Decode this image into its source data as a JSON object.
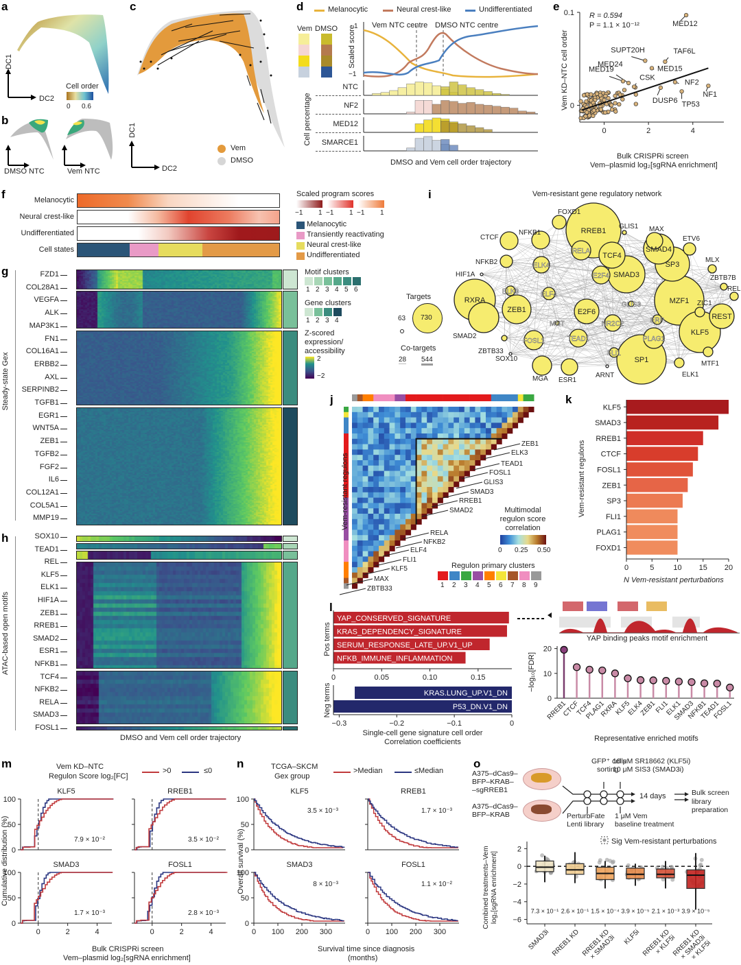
{
  "panels": {
    "a": {
      "label": "a",
      "xaxis": "DC2",
      "yaxis": "DC1",
      "colorbar_title": "Cell order",
      "colorbar_ticks": [
        "0",
        "0.6"
      ]
    },
    "b": {
      "label": "b",
      "captions": [
        "DMSO NTC",
        "Vem NTC"
      ]
    },
    "c": {
      "label": "c",
      "xaxis": "DC2",
      "yaxis": "DC1",
      "legend": [
        {
          "name": "Vem",
          "color": "#e39a3c"
        },
        {
          "name": "DMSO",
          "color": "#d6d6d6"
        }
      ]
    },
    "d": {
      "label": "d",
      "legend": [
        {
          "name": "Melanocytic",
          "color": "#e8b33c"
        },
        {
          "name": "Neural crest-like",
          "color": "#c27a5e"
        },
        {
          "name": "Undifferentiated",
          "color": "#4a7fbf"
        }
      ],
      "swatch_headers": [
        "Vem",
        "DMSO"
      ],
      "vem_colors": [
        "#f6ee99",
        "#f5d6d2",
        "#f3dc1c",
        "#c7d1de"
      ],
      "dmso_colors": [
        "#c9bb2c",
        "#b47a4e",
        "#a88a2a",
        "#2d5696"
      ],
      "ylabel": "Scaled score",
      "yticks": [
        "1",
        "−1"
      ],
      "annotations": [
        "Vem NTC centre",
        "DMSO NTC centre"
      ],
      "hist_rows": [
        "NTC",
        "NF2",
        "MED12",
        "SMARCE1"
      ],
      "hist_ylabel": "Cell percentage",
      "xlabel": "DMSO and Vem cell order trajectory"
    },
    "f": {
      "label": "f",
      "rows": [
        "Melanocytic",
        "Neural crest-like",
        "Undifferentiated",
        "Cell states"
      ],
      "legend_title": "Scaled program scores",
      "scale_ticks": [
        "−1",
        "1",
        "−1",
        "1",
        "−1",
        "1"
      ],
      "states": [
        {
          "name": "Melanocytic",
          "color": "#2b5578",
          "fraction": 0.26
        },
        {
          "name": "Transiently reactivating",
          "color": "#e99ac6",
          "fraction": 0.14
        },
        {
          "name": "Neural crest-like",
          "color": "#e6dc5e",
          "fraction": 0.22
        },
        {
          "name": "Undifferentiated",
          "color": "#e39a47",
          "fraction": 0.38
        }
      ]
    },
    "g": {
      "label": "g",
      "side_label": "Steady-state Gex",
      "genes": [
        "FZD1",
        "COL28A1",
        "VEGFA",
        "ALK",
        "MAP3K1",
        "FN1",
        "COL16A1",
        "ERBB2",
        "AXL",
        "SERPINB2",
        "TGFB1",
        "EGR1",
        "WNT5A",
        "ZEB1",
        "TGFB2",
        "FGF2",
        "IL6",
        "COL12A1",
        "COL5A1",
        "MMP19"
      ],
      "motif_clusters_title": "Motif clusters",
      "motif_clusters": [
        "1",
        "2",
        "3",
        "4",
        "5",
        "6"
      ],
      "motif_colors": [
        "#cde6d2",
        "#a8d6b6",
        "#79c09a",
        "#55a88a",
        "#3b8c7f",
        "#2b6f6e"
      ],
      "gene_clusters_title": "Gene clusters",
      "gene_clusters": [
        "1",
        "2",
        "3",
        "4"
      ],
      "gene_colors": [
        "#cde6d2",
        "#79c09a",
        "#3b8c7f",
        "#1e4b5e"
      ],
      "zscore_title": "Z-scored expression/ accessibility",
      "zscore_ticks": [
        "2",
        "−2"
      ]
    },
    "h": {
      "label": "h",
      "side_label": "ATAC-based open motifs",
      "motifs": [
        "SOX10",
        "TEAD1",
        "REL",
        "KLF5",
        "ELK1",
        "HIF1A",
        "ZEB1",
        "RREB1",
        "SMAD2",
        "ESR1",
        "NFKB1",
        "TCF4",
        "NFKB2",
        "RELA",
        "SMAD3",
        "FOSL1"
      ],
      "xlabel": "DMSO and Vem cell order trajectory"
    },
    "i": {
      "label": "i",
      "title": "Vem-resistant gene regulatory network",
      "targets_title": "Targets",
      "targets_values": [
        "63",
        "730"
      ],
      "cotargets_title": "Co-targets",
      "cotargets_values": [
        "28",
        "544"
      ]
    },
    "j": {
      "label": "j",
      "ylabel": "Vem-resistant regulons",
      "colorbar_title": "Multimodal regulon score correlation",
      "colorbar_ticks": [
        "0",
        "0.25",
        "0.50"
      ],
      "callouts": [
        "ZEB1",
        "ELK3",
        "TEAD1",
        "FOSL1",
        "GLIS3",
        "SMAD3",
        "RREB1",
        "SMAD2",
        "RELA",
        "NFKB2",
        "ELF4",
        "FLI1",
        "KLF5",
        "MAX",
        "ZBTB33"
      ],
      "clusters_title": "Regulon primary clusters",
      "clusters": [
        {
          "id": "1",
          "color": "#e31a1c"
        },
        {
          "id": "2",
          "color": "#3f86c6"
        },
        {
          "id": "3",
          "color": "#3aa842"
        },
        {
          "id": "4",
          "color": "#984ea3"
        },
        {
          "id": "5",
          "color": "#ff7f00"
        },
        {
          "id": "6",
          "color": "#f4e53a"
        },
        {
          "id": "7",
          "color": "#a65628"
        },
        {
          "id": "8",
          "color": "#f08ec0"
        },
        {
          "id": "9",
          "color": "#999999"
        }
      ]
    },
    "m": {
      "label": "m",
      "legend_title": "Vem KD–NTC Regulon Score log₂[FC]",
      "legend_title_l1": "Vem KD–NTC",
      "legend_title_l2": "Regulon Score log₂[FC]",
      "legend": [
        {
          "name": ">0",
          "color": "#c0393b"
        },
        {
          "name": "≤0",
          "color": "#2a3580"
        }
      ],
      "ylabel": "Cumulative distribution (%)",
      "xlabel_l1": "Bulk CRISPRi screen",
      "xlabel_l2": "Vem–plasmid log₂[sgRNA enrichment]",
      "yticks": [
        "100",
        "50",
        "0"
      ],
      "xticks": [
        "0",
        "2",
        "4"
      ],
      "subplots": [
        {
          "title": "KLF5",
          "p": "7.9 × 10⁻²"
        },
        {
          "title": "RREB1",
          "p": "3.5 × 10⁻²"
        },
        {
          "title": "SMAD3",
          "p": "1.7 × 10⁻³"
        },
        {
          "title": "FOSL1",
          "p": "2.8 × 10⁻³"
        }
      ]
    },
    "n": {
      "label": "n",
      "legend_title_l1": "TCGA–SKCM",
      "legend_title_l2": "Gex group",
      "legend": [
        {
          "name": ">Median",
          "color": "#c0393b"
        },
        {
          "name": "≤Median",
          "color": "#2a3580"
        }
      ],
      "ylabel": "Overall survival (%)",
      "xlabel_l1": "Survival time since diagnosis",
      "xlabel_l2": "(months)",
      "yticks": [
        "100",
        "50",
        "0"
      ],
      "xticks": [
        "0",
        "100",
        "200",
        "300"
      ],
      "subplots": [
        {
          "title": "KLF5",
          "p": "3.5 × 10⁻³"
        },
        {
          "title": "RREB1",
          "p": "1.7 × 10⁻³"
        },
        {
          "title": "SMAD3",
          "p": "8 × 10⁻³"
        },
        {
          "title": "FOSL1",
          "p": "1.1 × 10⁻²"
        }
      ]
    },
    "o": {
      "label": "o",
      "dish1": "A375–dCas9– BFP–KRAB– –sgRREB1",
      "dish1_lines": [
        "A375–dCas9–",
        "BFP–KRAB–",
        "–sgRREB1"
      ],
      "dish2_lines": [
        "A375–dCas9–",
        "BFP–KRAB"
      ],
      "step_gfp": [
        "GFP⁺ cells",
        "sorting"
      ],
      "drugs": [
        "10 μM SR18662 (KLF5i)",
        "10 μM SIS3 (SMAD3i)"
      ],
      "days": "14 days",
      "outputs": [
        "Bulk screen",
        "library preparation"
      ],
      "library": [
        "PerturbFate",
        "Lenti library"
      ],
      "baseline": [
        "1 μM Vem",
        "baseline treatment"
      ],
      "ylabel_l1": "Combined treatments–Vem",
      "ylabel_l2": "log₂[sgRNA enrichment]",
      "sig_legend": "Sig Vem-resistant perturbations"
    }
  },
  "chart_data": [
    {
      "panel": "e",
      "type": "scatter",
      "title": "",
      "stats": {
        "R": "R = 0.594",
        "P": "P = 1.1 × 10⁻¹²"
      },
      "xlabel": "Bulk CRISPRi screen Vem–plasmid log₂[sgRNA enrichment]",
      "xlabel_l1": "Bulk CRISPRi screen",
      "xlabel_l2": "Vem–plasmid log₂[sgRNA enrichment]",
      "ylabel": "Vem KD–NTC cell order",
      "xticks": [
        "0",
        "2",
        "4"
      ],
      "yticks": [
        "0.1",
        "0"
      ],
      "xlim": [
        -1.1,
        5.4
      ],
      "ylim": [
        -0.018,
        0.1
      ],
      "labeled_points": [
        {
          "name": "MED12",
          "x": 3.7,
          "y": 0.097
        },
        {
          "name": "SUPT20H",
          "x": 1.85,
          "y": 0.048
        },
        {
          "name": "TAF6L",
          "x": 2.75,
          "y": 0.047
        },
        {
          "name": "MED15",
          "x": 2.15,
          "y": 0.04
        },
        {
          "name": "MED24",
          "x": 1.1,
          "y": 0.024
        },
        {
          "name": "MED19",
          "x": 0.85,
          "y": 0.026
        },
        {
          "name": "CSK",
          "x": 1.35,
          "y": 0.02
        },
        {
          "name": "NF2",
          "x": 3.2,
          "y": 0.025
        },
        {
          "name": "NF1",
          "x": 4.7,
          "y": 0.021
        },
        {
          "name": "DUSP6",
          "x": 2.55,
          "y": 0.019
        },
        {
          "name": "TP53",
          "x": 3.5,
          "y": 0.015
        }
      ],
      "fit_line": {
        "x": [
          -1.0,
          4.7
        ],
        "y": [
          -0.005,
          0.04
        ]
      }
    },
    {
      "panel": "k",
      "type": "bar",
      "orientation": "horizontal",
      "categories": [
        "KLF5",
        "SMAD3",
        "RREB1",
        "CTCF",
        "FOSL1",
        "ZEB1",
        "SP3",
        "FLI1",
        "PLAG1",
        "FOXD1"
      ],
      "values": [
        20,
        18,
        15,
        14,
        13,
        12,
        11,
        10,
        10,
        10
      ],
      "colors": [
        "#a81b1e",
        "#b8221f",
        "#cf2e28",
        "#d83d2c",
        "#e0533a",
        "#e66547",
        "#ec7a52",
        "#ef8a5c",
        "#f08c5d",
        "#f08c5d"
      ],
      "xlabel": "N Vem-resistant perturbations",
      "ylabel": "Vem-resistant regulons",
      "xticks": [
        "0",
        "5",
        "10",
        "15",
        "20"
      ],
      "xlim": [
        0,
        20
      ]
    },
    {
      "panel": "l",
      "type": "bar",
      "orientation": "horizontal",
      "pos_terms": {
        "label": "Pos terms",
        "categories": [
          "YAP_CONSERVED_SIGNATURE",
          "KRAS_DEPENDENCY_SIGNATURE",
          "SERUM_RESPONSE_LATE_UP.V1_UP",
          "NFKB_IMMUNE_INFLAMMATION"
        ],
        "values": [
          0.182,
          0.18,
          0.162,
          0.137
        ],
        "color": "#c0262d",
        "xticks": [
          "0",
          "0.05",
          "0.10",
          "0.15"
        ],
        "xlim": [
          0,
          0.185
        ]
      },
      "neg_terms": {
        "label": "Neg terms",
        "categories": [
          "KRAS.LUNG_UP.V1_DN",
          "P53_DN.V1_DN"
        ],
        "values": [
          -0.273,
          -0.31
        ],
        "color": "#23286b",
        "xticks": [
          "−0.3",
          "−0.2",
          "−0.1",
          "0"
        ],
        "xlim": [
          -0.31,
          0
        ]
      },
      "xlabel": "Single-cell gene signature cell order Correlation coefficients",
      "xlabel_l1": "Single-cell gene signature cell order",
      "xlabel_l2": "Correlation coefficients"
    },
    {
      "panel": "l-right",
      "type": "scatter",
      "subtype": "lollipop",
      "header": "YAP binding peaks motif enrichment",
      "categories": [
        "RREB1",
        "CTCF",
        "TCF4",
        "PLAG1",
        "RXRA",
        "KLF5",
        "ELK4",
        "ZEB1",
        "FLI1",
        "ELK1",
        "SMAD3",
        "NFKB1",
        "TEAD1",
        "FOSL1"
      ],
      "values": [
        19.5,
        12.5,
        11.5,
        11.2,
        10,
        8,
        7.3,
        7.2,
        7,
        6.7,
        6.5,
        6,
        5.9,
        4.3
      ],
      "ylabel": "−log₁₀[FDR]",
      "xlabel": "Representative enriched motifs",
      "yticks": [
        "20",
        "10",
        "0"
      ],
      "ylim": [
        0,
        21
      ]
    },
    {
      "panel": "o-bottom",
      "type": "bar",
      "subtype": "boxplot",
      "categories": [
        "SMAD3i",
        "RREB1 KD",
        "RREB1 KD × SMAD3i",
        "KLF5i",
        "RREB1 KD × KLF5i",
        "RREB1 KD × SMAD3i × KLF5i"
      ],
      "medians": [
        -0.1,
        -0.4,
        -0.8,
        -0.9,
        -0.9,
        -1.0
      ],
      "q1": [
        -0.6,
        -0.9,
        -1.5,
        -1.4,
        -1.3,
        -2.5
      ],
      "q3": [
        0.6,
        0.3,
        -0.1,
        -0.2,
        -0.3,
        -0.4
      ],
      "whisker_low": [
        -1.8,
        -1.9,
        -2.5,
        -2.2,
        -2.5,
        -4.9
      ],
      "whisker_high": [
        1.2,
        1.6,
        0.6,
        0.3,
        0.6,
        1.5
      ],
      "p_values": [
        "7.3 × 10⁻¹",
        "2.6 × 10⁻¹",
        "1.5 × 10⁻⁴",
        "3.9 × 10⁻⁵",
        "2.1 × 10⁻³",
        "3.9 × 10⁻⁵"
      ],
      "colors": [
        "#efe4c4",
        "#f2cf94",
        "#efa55e",
        "#e88c4c",
        "#d9543a",
        "#c2221f"
      ],
      "yticks": [
        "2",
        "0",
        "−2",
        "−4",
        "−6"
      ],
      "ylim": [
        -6.5,
        2.8
      ],
      "ylabel": "Combined treatments–Vem log₂[sgRNA enrichment]"
    }
  ]
}
